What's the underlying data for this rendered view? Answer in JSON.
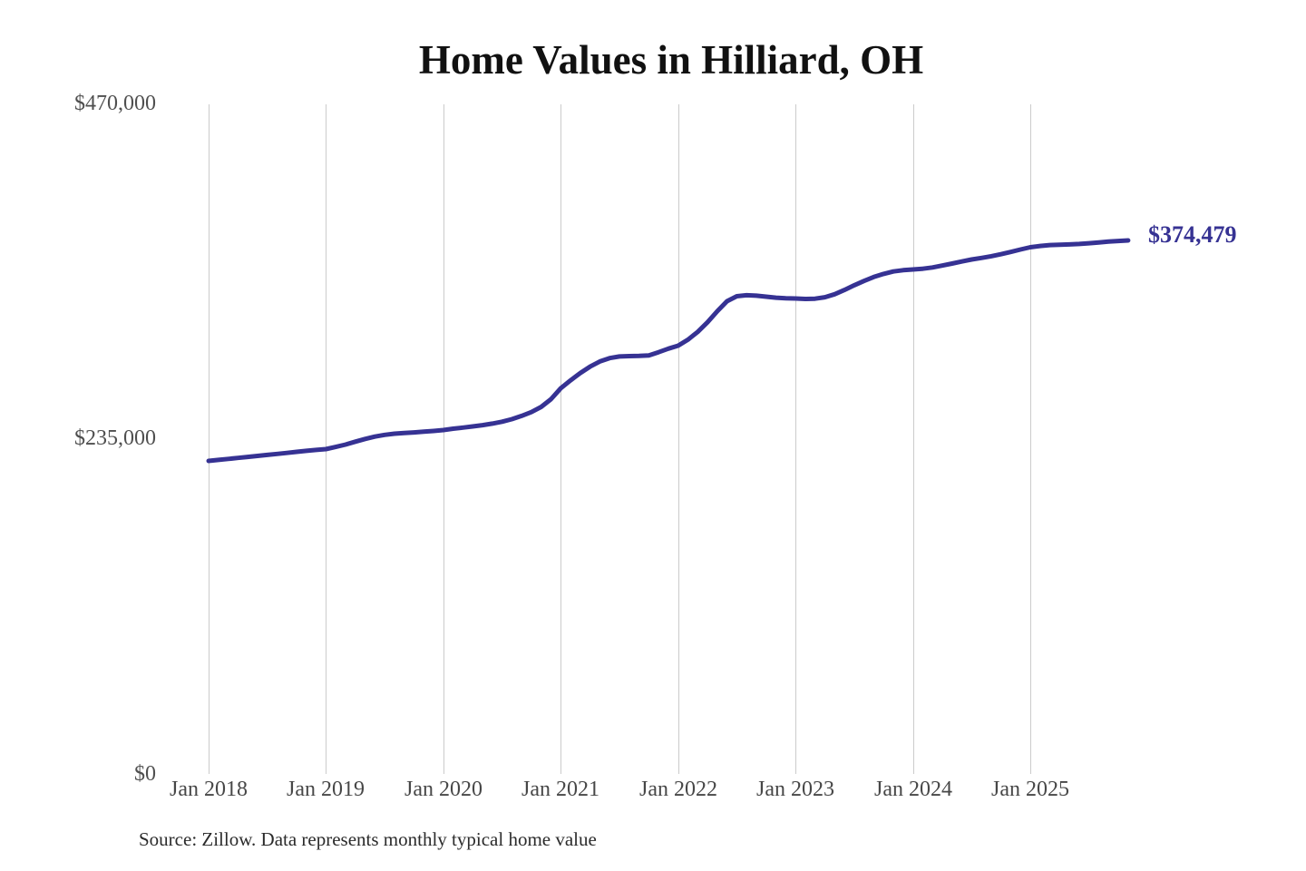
{
  "title": "Home Values in Hilliard, OH",
  "source_note": "Source: Zillow. Data represents monthly typical home value",
  "colors": {
    "line": "#363293",
    "grid": "#cbcbcb",
    "axis_text": "#4a4a4a",
    "title_text": "#111111"
  },
  "chart_data": {
    "type": "line",
    "title": "Home Values in Hilliard, OH",
    "x_start": "Jan 2018",
    "x_interval": "monthly",
    "x_tick_labels": [
      "Jan 2018",
      "Jan 2019",
      "Jan 2020",
      "Jan 2021",
      "Jan 2022",
      "Jan 2023",
      "Jan 2024",
      "Jan 2025"
    ],
    "y_tick_labels": [
      "$470,000",
      "$235,000",
      "$0"
    ],
    "y_ticks": [
      470000,
      235000,
      0
    ],
    "ylim": [
      0,
      470000
    ],
    "grid": "vertical-only",
    "legend": "none",
    "line_color": "#363293",
    "last_value": 374479,
    "last_value_label": "$374,479",
    "series": [
      {
        "name": "Monthly typical home value",
        "values": [
          219700,
          220400,
          221100,
          221800,
          222500,
          223200,
          223900,
          224600,
          225300,
          226100,
          226800,
          227400,
          228000,
          229500,
          231200,
          233200,
          235100,
          236800,
          238000,
          238800,
          239300,
          239700,
          240200,
          240700,
          241400,
          242300,
          243100,
          243900,
          244800,
          245900,
          247200,
          249000,
          251300,
          254000,
          257600,
          263000,
          270700,
          276300,
          281400,
          285900,
          289500,
          291900,
          293000,
          293300,
          293400,
          293800,
          296000,
          298500,
          300600,
          304800,
          310300,
          317000,
          324800,
          331800,
          335300,
          336000,
          335700,
          335000,
          334300,
          333900,
          333700,
          333400,
          333600,
          334600,
          336700,
          339700,
          343000,
          346000,
          348800,
          351000,
          352700,
          353600,
          354100,
          354600,
          355500,
          356800,
          358200,
          359700,
          361100,
          362200,
          363400,
          364800,
          366400,
          368100,
          369700,
          370600,
          371200,
          371500,
          371700,
          372000,
          372500,
          373100,
          373700,
          374100,
          374479
        ]
      }
    ]
  }
}
